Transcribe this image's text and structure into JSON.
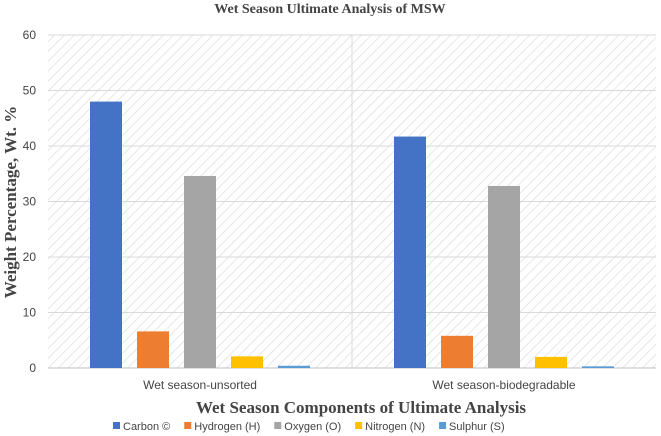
{
  "chart_data": {
    "type": "bar",
    "title": "Wet Season Ultimate Analysis of MSW",
    "xlabel": "Wet Season Components of Ultimate Analysis",
    "ylabel": "Weight Percentage, Wt. %",
    "ylim": [
      0,
      60
    ],
    "yticks": [
      0,
      10,
      20,
      30,
      40,
      50,
      60
    ],
    "categories": [
      "Wet season-unsorted",
      "Wet season-biodegradable"
    ],
    "series": [
      {
        "name": "Carbon ©",
        "color": "#4472C4",
        "values": [
          48.0,
          41.7
        ]
      },
      {
        "name": "Hydrogen (H)",
        "color": "#ED7D31",
        "values": [
          6.6,
          5.8
        ]
      },
      {
        "name": "Oxygen (O)",
        "color": "#A5A5A5",
        "values": [
          34.6,
          32.8
        ]
      },
      {
        "name": "Nitrogen (N)",
        "color": "#FFC000",
        "values": [
          2.1,
          2.0
        ]
      },
      {
        "name": "Sulphur (S)",
        "color": "#5B9BD5",
        "values": [
          0.4,
          0.3
        ]
      }
    ],
    "grid": true,
    "legend_position": "bottom"
  }
}
